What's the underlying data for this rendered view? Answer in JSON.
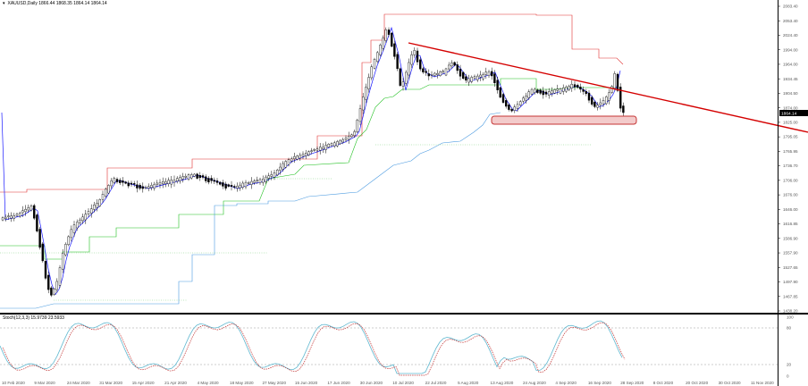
{
  "header": {
    "symbol_info": "XAUUSD,Daily  1866.44 1868.35 1864.14 1864.14"
  },
  "indicator": {
    "label": "Stoch(12,3,3) 15.9739 23.5933"
  },
  "colors": {
    "candles": "#000000",
    "moving_average": "#1a1aff",
    "trendline": "#d40000",
    "support_box_fill": "#f2c6c6",
    "support_box_border": "#c02020",
    "resistance_step": "#e03030",
    "mid_step": "#20c020",
    "low_step": "#4a9ae0",
    "stoch_main": "#5fb8d0",
    "stoch_signal": "#c03030",
    "price_tag": "#000000"
  },
  "price_axis": {
    "labels": [
      "2083.40",
      "2053.40",
      "2024.40",
      "1994.00",
      "1964.00",
      "1934.45",
      "1904.50",
      "1874.00",
      "1864.14",
      "1825.00",
      "1795.05",
      "1765.95",
      "1736.70",
      "1706.00",
      "1676.00",
      "1646.00",
      "1616.85",
      "1586.90",
      "1557.90",
      "1527.65",
      "1497.90",
      "1467.85",
      "1438.20"
    ],
    "current": "1864.14"
  },
  "stoch_axis": {
    "labels": [
      "100",
      "80",
      "20",
      "0"
    ]
  },
  "date_axis": {
    "labels": [
      "10 Feb 2020",
      "9 Mar 2020",
      "24 Mar 2020",
      "31 Mar 2020",
      "15 Apr 2020",
      "21 Apr 2020",
      "4 May 2020",
      "18 May 2020",
      "27 May 2020",
      "15 Jun 2020",
      "17 Jun 2020",
      "30 Jun 2020",
      "10 Jul 2020",
      "22 Jul 2020",
      "5 Aug 2020",
      "13 Aug 2020",
      "24 Aug 2020",
      "4 Sep 2020",
      "16 Sep 2020",
      "28 Sep 2020",
      "8 Oct 2020",
      "20 Oct 2020",
      "30 Oct 2020",
      "11 Nov 2020"
    ]
  }
}
